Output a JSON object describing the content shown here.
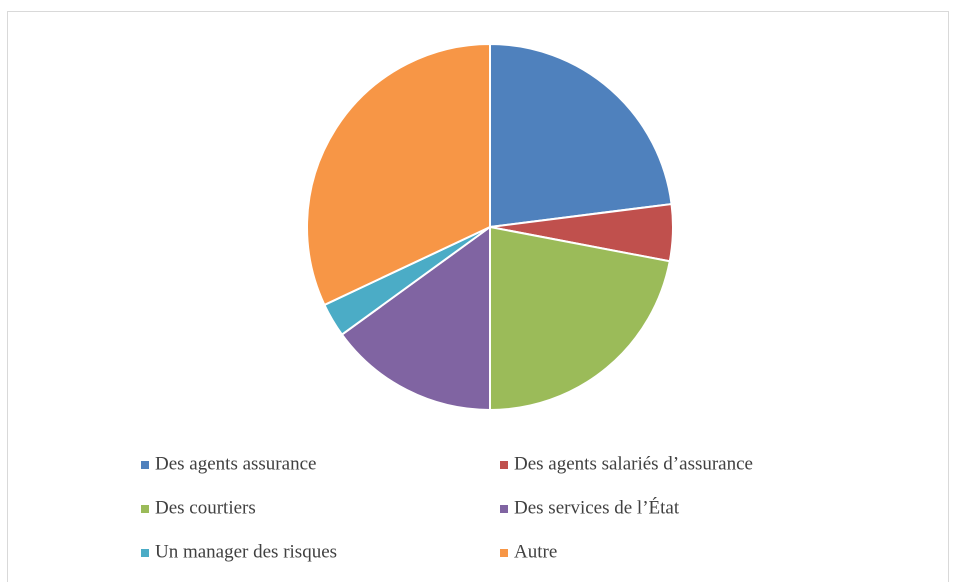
{
  "chart_data": {
    "type": "pie",
    "categories": [
      "Des agents assurance",
      "Des agents salariés d’assurance",
      "Des courtiers",
      "Des services de l’État",
      "Un manager des risques",
      "Autre"
    ],
    "values": [
      23,
      5,
      22,
      15,
      3,
      32
    ],
    "colors": [
      "#4f81bd",
      "#c0504d",
      "#9bbb59",
      "#8064a2",
      "#4bacc6",
      "#f79646"
    ],
    "legend": "bottom"
  }
}
